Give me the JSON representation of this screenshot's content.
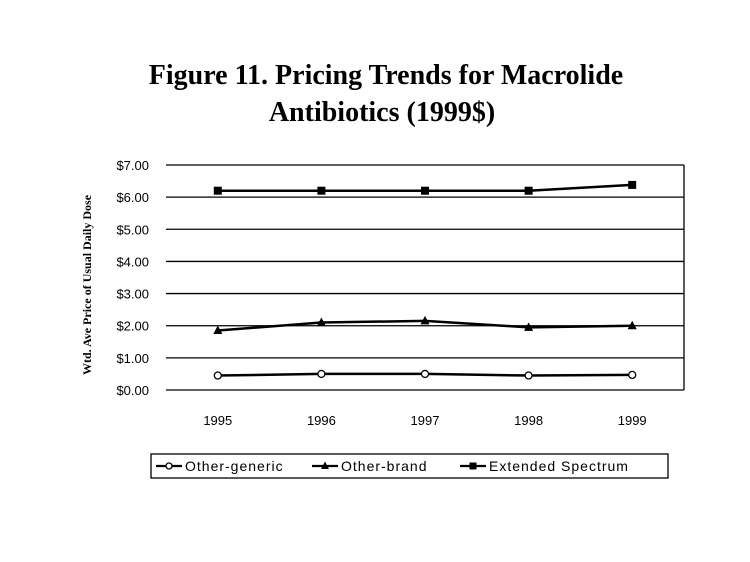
{
  "chart_data": {
    "type": "line",
    "title_line1": "Figure 11. Pricing Trends for Macrolide",
    "title_line2": "Antibiotics (1999$)",
    "xlabel": "",
    "ylabel": "Wtd. Ave Price of Usual Daily Dose",
    "categories": [
      "1995",
      "1996",
      "1997",
      "1998",
      "1999"
    ],
    "y_ticks": [
      "$0.00",
      "$1.00",
      "$2.00",
      "$3.00",
      "$4.00",
      "$5.00",
      "$6.00",
      "$7.00"
    ],
    "ylim": [
      0,
      7
    ],
    "grid": true,
    "legend_position": "bottom",
    "series": [
      {
        "name": "Other-generic",
        "marker": "circle-open",
        "values": [
          0.45,
          0.5,
          0.5,
          0.45,
          0.47
        ]
      },
      {
        "name": "Other-brand",
        "marker": "triangle",
        "values": [
          1.85,
          2.1,
          2.15,
          1.95,
          2.0
        ]
      },
      {
        "name": "Extended Spectrum",
        "marker": "square",
        "values": [
          6.2,
          6.2,
          6.2,
          6.2,
          6.38
        ]
      }
    ],
    "colors": {
      "line": "#000000",
      "grid": "#000000",
      "background": "#ffffff"
    }
  }
}
